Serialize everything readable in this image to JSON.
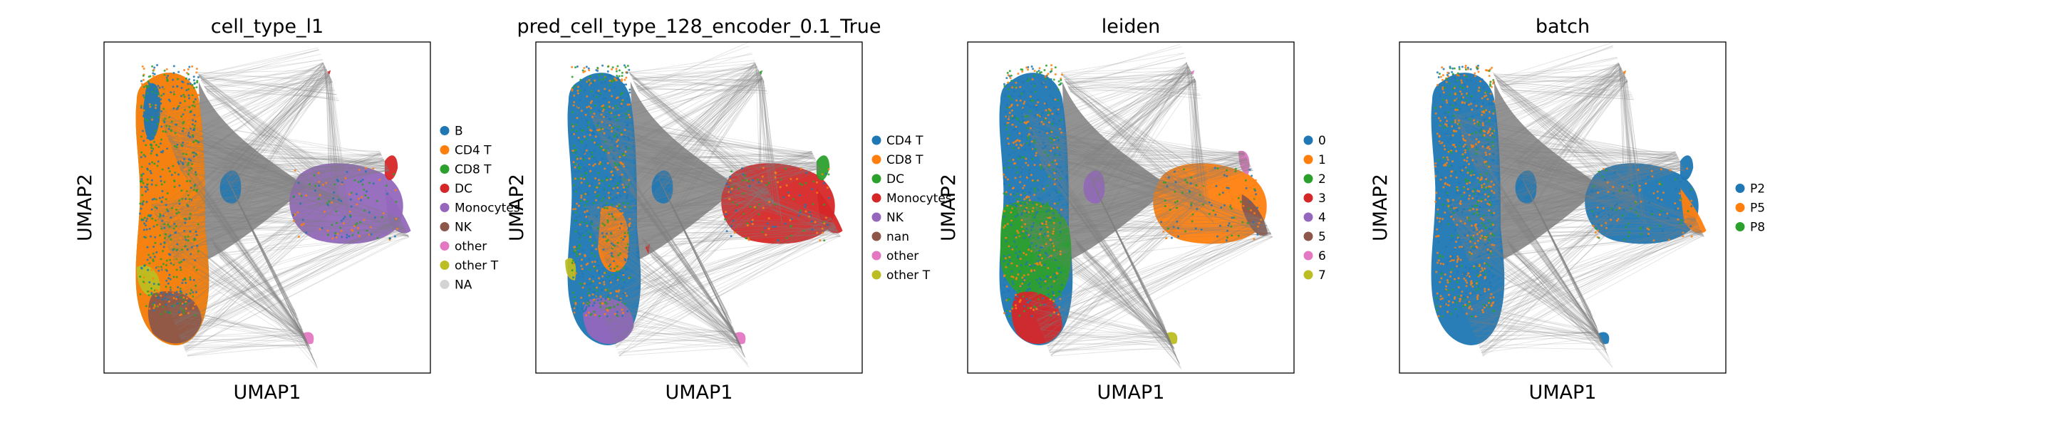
{
  "chart_data": [
    {
      "type": "scatter",
      "title": "cell_type_l1",
      "xlabel": "UMAP1",
      "ylabel": "UMAP2",
      "legend_position": "right",
      "series": [
        {
          "name": "B",
          "color": "#1f77b4"
        },
        {
          "name": "CD4 T",
          "color": "#ff7f0e"
        },
        {
          "name": "CD8 T",
          "color": "#2ca02c"
        },
        {
          "name": "DC",
          "color": "#d62728"
        },
        {
          "name": "Monocytes",
          "color": "#9467bd"
        },
        {
          "name": "NK",
          "color": "#8c564b"
        },
        {
          "name": "other",
          "color": "#e377c2"
        },
        {
          "name": "other T",
          "color": "#bcbd22"
        },
        {
          "name": "NA",
          "color": "#d3d3d3"
        }
      ]
    },
    {
      "type": "scatter",
      "title": "pred_cell_type_128_encoder_0.1_True",
      "xlabel": "UMAP1",
      "ylabel": "UMAP2",
      "legend_position": "right",
      "series": [
        {
          "name": "CD4 T",
          "color": "#1f77b4"
        },
        {
          "name": "CD8 T",
          "color": "#ff7f0e"
        },
        {
          "name": "DC",
          "color": "#2ca02c"
        },
        {
          "name": "Monocytes",
          "color": "#d62728"
        },
        {
          "name": "NK",
          "color": "#9467bd"
        },
        {
          "name": "nan",
          "color": "#8c564b"
        },
        {
          "name": "other",
          "color": "#e377c2"
        },
        {
          "name": "other T",
          "color": "#bcbd22"
        }
      ]
    },
    {
      "type": "scatter",
      "title": "leiden",
      "xlabel": "UMAP1",
      "ylabel": "UMAP2",
      "legend_position": "right",
      "series": [
        {
          "name": "0",
          "color": "#1f77b4"
        },
        {
          "name": "1",
          "color": "#ff7f0e"
        },
        {
          "name": "2",
          "color": "#2ca02c"
        },
        {
          "name": "3",
          "color": "#d62728"
        },
        {
          "name": "4",
          "color": "#9467bd"
        },
        {
          "name": "5",
          "color": "#8c564b"
        },
        {
          "name": "6",
          "color": "#e377c2"
        },
        {
          "name": "7",
          "color": "#bcbd22"
        }
      ]
    },
    {
      "type": "scatter",
      "title": "batch",
      "xlabel": "UMAP1",
      "ylabel": "UMAP2",
      "legend_position": "right",
      "series": [
        {
          "name": "P2",
          "color": "#1f77b4"
        },
        {
          "name": "P5",
          "color": "#ff7f0e"
        },
        {
          "name": "P8",
          "color": "#2ca02c"
        }
      ]
    }
  ]
}
